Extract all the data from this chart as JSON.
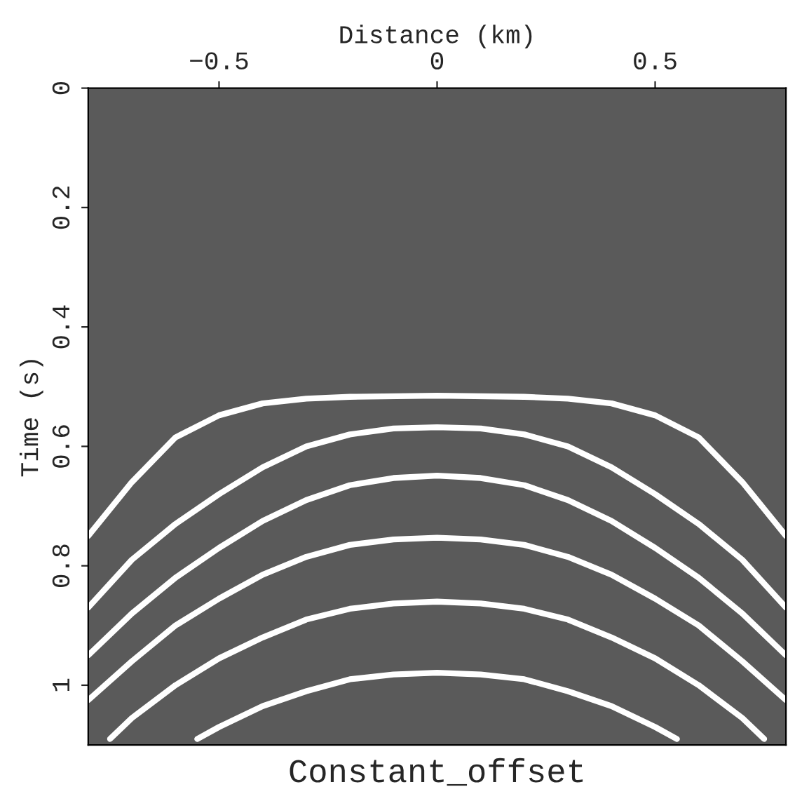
{
  "chart_data": {
    "type": "line",
    "title": "Constant_offset",
    "xlabel": "Distance (km)",
    "ylabel": "Time (s)",
    "xlim": [
      -0.8,
      0.8
    ],
    "ylim": [
      1.1,
      0
    ],
    "xticks": [
      {
        "value": -0.5,
        "label": "−0.5"
      },
      0,
      0.5
    ],
    "yticks": [
      0,
      0.2,
      0.4,
      0.6,
      0.8,
      1
    ],
    "grid": false,
    "legend": false,
    "marker": "none",
    "line_style": "solid",
    "series": [
      {
        "color": "#ffffff",
        "x": [
          -0.8,
          -0.7,
          -0.6,
          -0.5,
          -0.4,
          -0.3,
          -0.2,
          0,
          0.2,
          0.3,
          0.4,
          0.5,
          0.6,
          0.7,
          0.8
        ],
        "values": [
          0.75,
          0.66,
          0.585,
          0.548,
          0.528,
          0.52,
          0.517,
          0.515,
          0.517,
          0.52,
          0.528,
          0.548,
          0.585,
          0.66,
          0.75
        ]
      },
      {
        "color": "#ffffff",
        "x": [
          -0.8,
          -0.7,
          -0.6,
          -0.5,
          -0.4,
          -0.3,
          -0.2,
          -0.1,
          0,
          0.1,
          0.2,
          0.3,
          0.4,
          0.5,
          0.6,
          0.7,
          0.8
        ],
        "values": [
          0.87,
          0.79,
          0.73,
          0.68,
          0.635,
          0.6,
          0.58,
          0.57,
          0.568,
          0.57,
          0.58,
          0.6,
          0.635,
          0.68,
          0.73,
          0.79,
          0.87
        ]
      },
      {
        "color": "#ffffff",
        "x": [
          -0.8,
          -0.7,
          -0.6,
          -0.5,
          -0.4,
          -0.3,
          -0.2,
          -0.1,
          0,
          0.1,
          0.2,
          0.3,
          0.4,
          0.5,
          0.6,
          0.7,
          0.8
        ],
        "values": [
          0.95,
          0.88,
          0.82,
          0.77,
          0.725,
          0.69,
          0.665,
          0.653,
          0.649,
          0.653,
          0.665,
          0.69,
          0.725,
          0.77,
          0.82,
          0.88,
          0.95
        ]
      },
      {
        "color": "#ffffff",
        "x": [
          -0.8,
          -0.7,
          -0.6,
          -0.5,
          -0.4,
          -0.3,
          -0.2,
          -0.1,
          0,
          0.1,
          0.2,
          0.3,
          0.4,
          0.5,
          0.6,
          0.7,
          0.8
        ],
        "values": [
          1.025,
          0.96,
          0.9,
          0.855,
          0.815,
          0.785,
          0.765,
          0.756,
          0.753,
          0.756,
          0.765,
          0.785,
          0.815,
          0.855,
          0.9,
          0.96,
          1.025
        ]
      },
      {
        "color": "#ffffff",
        "x": [
          -0.75,
          -0.7,
          -0.6,
          -0.5,
          -0.4,
          -0.3,
          -0.2,
          -0.1,
          0,
          0.1,
          0.2,
          0.3,
          0.4,
          0.5,
          0.6,
          0.7,
          0.75
        ],
        "values": [
          1.09,
          1.055,
          1.0,
          0.955,
          0.92,
          0.89,
          0.872,
          0.863,
          0.86,
          0.863,
          0.872,
          0.89,
          0.92,
          0.955,
          1.0,
          1.055,
          1.09
        ]
      },
      {
        "color": "#ffffff",
        "x": [
          -0.55,
          -0.5,
          -0.4,
          -0.3,
          -0.2,
          -0.1,
          0,
          0.1,
          0.2,
          0.3,
          0.4,
          0.5,
          0.55
        ],
        "values": [
          1.09,
          1.07,
          1.035,
          1.01,
          0.99,
          0.982,
          0.979,
          0.982,
          0.99,
          1.01,
          1.035,
          1.07,
          1.09
        ]
      }
    ]
  }
}
